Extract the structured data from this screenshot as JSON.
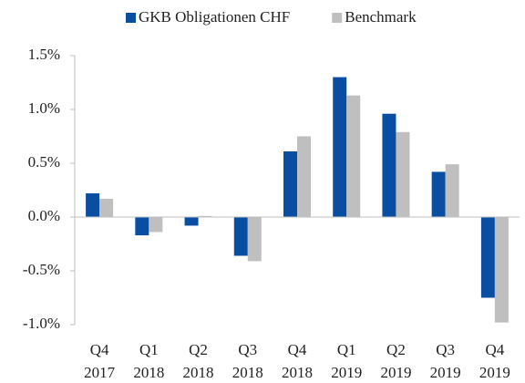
{
  "chart_data": {
    "type": "bar",
    "categories": [
      [
        "Q4",
        "2017"
      ],
      [
        "Q1",
        "2018"
      ],
      [
        "Q2",
        "2018"
      ],
      [
        "Q3",
        "2018"
      ],
      [
        "Q4",
        "2018"
      ],
      [
        "Q1",
        "2019"
      ],
      [
        "Q2",
        "2019"
      ],
      [
        "Q3",
        "2019"
      ],
      [
        "Q4",
        "2019"
      ]
    ],
    "series": [
      {
        "name": "GKB Obligationen CHF",
        "color": "#0a4ea2",
        "values": [
          0.22,
          -0.17,
          -0.08,
          -0.36,
          0.61,
          1.3,
          0.96,
          0.42,
          -0.75
        ]
      },
      {
        "name": "Benchmark",
        "color": "#bfbfbf",
        "values": [
          0.17,
          -0.14,
          0.01,
          -0.41,
          0.75,
          1.13,
          0.79,
          0.49,
          -0.98
        ]
      }
    ],
    "ylim": [
      -1.0,
      1.5
    ],
    "yticks": [
      {
        "value": -1.0,
        "label": "-1.0%"
      },
      {
        "value": -0.5,
        "label": "-0.5%"
      },
      {
        "value": 0.0,
        "label": "0.0%"
      },
      {
        "value": 0.5,
        "label": "0.5%"
      },
      {
        "value": 1.0,
        "label": "1.0%"
      },
      {
        "value": 1.5,
        "label": "1.5%"
      }
    ],
    "legend": "top",
    "grid": false
  }
}
